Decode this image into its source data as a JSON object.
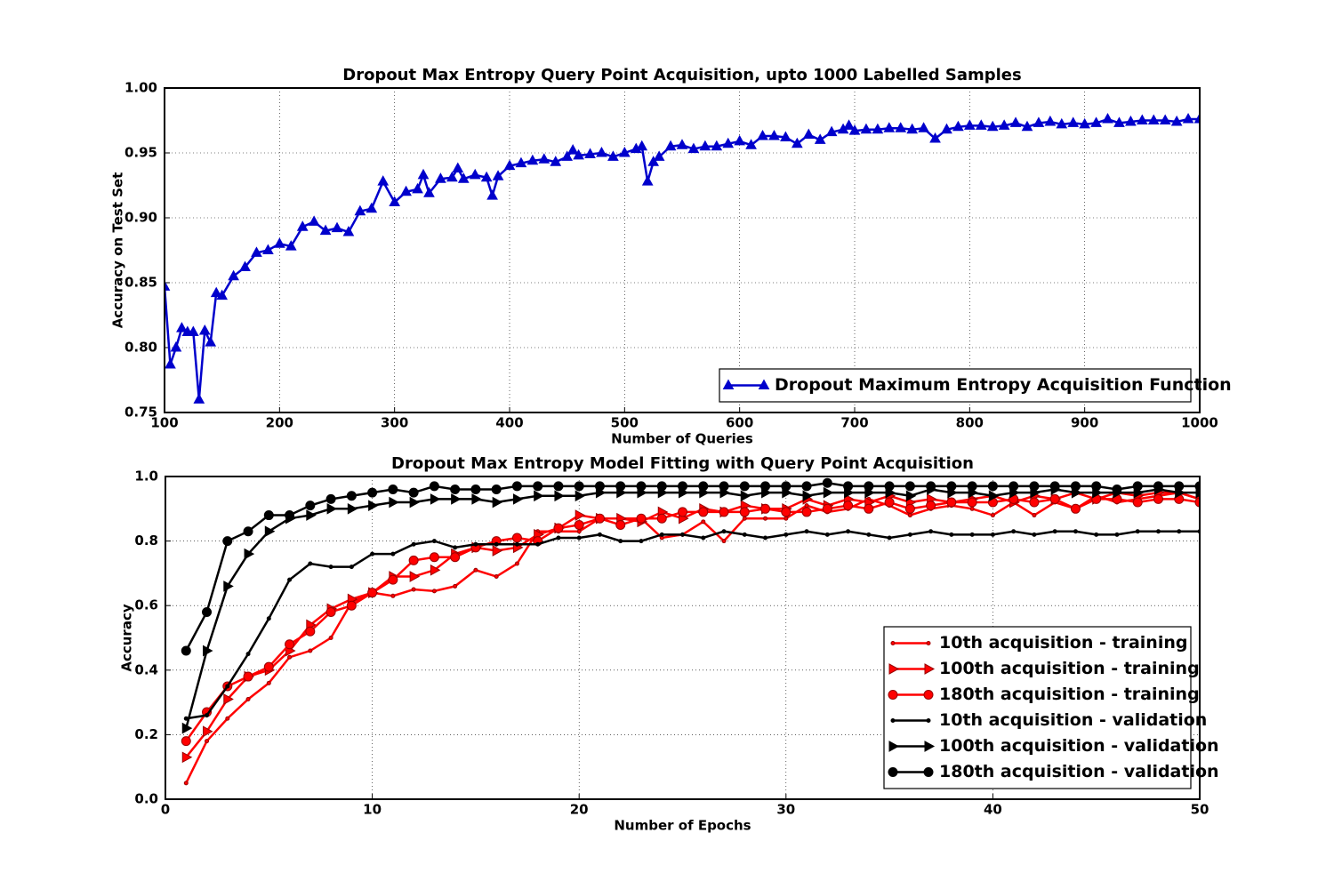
{
  "chart_data": [
    {
      "type": "line",
      "title": "Dropout Max Entropy Query Point Acquisition, upto 1000 Labelled Samples",
      "x_label": "Number of Queries",
      "y_label": "Accuracy on Test Set",
      "x": [
        100,
        105,
        110,
        115,
        120,
        125,
        130,
        135,
        140,
        145,
        150,
        160,
        170,
        180,
        190,
        200,
        210,
        220,
        230,
        240,
        250,
        260,
        270,
        280,
        290,
        300,
        310,
        320,
        325,
        330,
        340,
        350,
        355,
        360,
        370,
        380,
        385,
        390,
        400,
        410,
        420,
        430,
        440,
        450,
        455,
        460,
        470,
        480,
        490,
        500,
        510,
        515,
        520,
        525,
        530,
        540,
        550,
        560,
        570,
        580,
        590,
        600,
        610,
        620,
        630,
        640,
        650,
        660,
        670,
        680,
        690,
        695,
        700,
        710,
        720,
        730,
        740,
        750,
        760,
        770,
        780,
        790,
        800,
        810,
        820,
        830,
        840,
        850,
        860,
        870,
        880,
        890,
        900,
        910,
        920,
        930,
        940,
        950,
        960,
        970,
        980,
        990,
        1000
      ],
      "series": [
        {
          "name": "Dropout Maximum Entropy Acquisition Function",
          "color": "#0000cc",
          "marker": "triangle",
          "values": [
            0.847,
            0.787,
            0.8,
            0.815,
            0.812,
            0.812,
            0.76,
            0.813,
            0.804,
            0.842,
            0.84,
            0.855,
            0.862,
            0.873,
            0.875,
            0.88,
            0.878,
            0.893,
            0.897,
            0.89,
            0.892,
            0.889,
            0.905,
            0.907,
            0.928,
            0.912,
            0.92,
            0.922,
            0.933,
            0.919,
            0.93,
            0.931,
            0.938,
            0.93,
            0.933,
            0.931,
            0.917,
            0.932,
            0.94,
            0.942,
            0.944,
            0.945,
            0.943,
            0.947,
            0.952,
            0.948,
            0.949,
            0.95,
            0.947,
            0.95,
            0.953,
            0.955,
            0.928,
            0.943,
            0.947,
            0.955,
            0.956,
            0.953,
            0.955,
            0.955,
            0.957,
            0.959,
            0.956,
            0.963,
            0.963,
            0.962,
            0.957,
            0.964,
            0.96,
            0.966,
            0.968,
            0.971,
            0.967,
            0.968,
            0.968,
            0.969,
            0.969,
            0.968,
            0.969,
            0.961,
            0.968,
            0.97,
            0.971,
            0.971,
            0.97,
            0.971,
            0.973,
            0.97,
            0.973,
            0.974,
            0.972,
            0.973,
            0.972,
            0.973,
            0.976,
            0.973,
            0.974,
            0.975,
            0.975,
            0.975,
            0.974,
            0.976,
            0.976
          ]
        }
      ],
      "xlim": [
        100,
        1000
      ],
      "xticks": [
        100,
        200,
        300,
        400,
        500,
        600,
        700,
        800,
        900,
        1000
      ],
      "ylim": [
        0.75,
        1.0
      ],
      "yticks": [
        0.75,
        {
          "value": 0.8,
          "label": "0.80"
        },
        0.85,
        {
          "value": 0.9,
          "label": "0.90"
        },
        0.95,
        {
          "value": 1.0,
          "label": "1.00"
        }
      ],
      "grid": true,
      "legend": "lower right"
    },
    {
      "type": "line",
      "title": "Dropout Max Entropy Model Fitting with Query Point Acquisition",
      "x_label": "Number of Epochs",
      "y_label": "Accuracy",
      "x": [
        1,
        2,
        3,
        4,
        5,
        6,
        7,
        8,
        9,
        10,
        11,
        12,
        13,
        14,
        15,
        16,
        17,
        18,
        19,
        20,
        21,
        22,
        23,
        24,
        25,
        26,
        27,
        28,
        29,
        30,
        31,
        32,
        33,
        34,
        35,
        36,
        37,
        38,
        39,
        40,
        41,
        42,
        43,
        44,
        45,
        46,
        47,
        48,
        49,
        50
      ],
      "series": [
        {
          "name": "10th acquisition - training",
          "color": "#ff0000",
          "marker": "dot",
          "values": [
            0.05,
            0.18,
            0.25,
            0.31,
            0.36,
            0.44,
            0.46,
            0.5,
            0.61,
            0.64,
            0.63,
            0.65,
            0.645,
            0.66,
            0.71,
            0.69,
            0.73,
            0.83,
            0.83,
            0.83,
            0.87,
            0.87,
            0.87,
            0.81,
            0.82,
            0.86,
            0.8,
            0.87,
            0.87,
            0.87,
            0.91,
            0.89,
            0.9,
            0.93,
            0.91,
            0.88,
            0.9,
            0.91,
            0.9,
            0.88,
            0.92,
            0.88,
            0.92,
            0.9,
            0.94,
            0.92,
            0.93,
            0.94,
            0.95,
            0.93
          ]
        },
        {
          "name": "100th acquisition - training",
          "color": "#ff0000",
          "marker": "triangle-right",
          "values": [
            0.13,
            0.21,
            0.31,
            0.38,
            0.4,
            0.46,
            0.54,
            0.59,
            0.62,
            0.64,
            0.69,
            0.69,
            0.71,
            0.76,
            0.78,
            0.77,
            0.78,
            0.82,
            0.84,
            0.88,
            0.87,
            0.87,
            0.86,
            0.89,
            0.87,
            0.9,
            0.89,
            0.91,
            0.9,
            0.9,
            0.93,
            0.91,
            0.93,
            0.92,
            0.94,
            0.92,
            0.93,
            0.92,
            0.93,
            0.94,
            0.92,
            0.94,
            0.93,
            0.95,
            0.93,
            0.95,
            0.94,
            0.95,
            0.95,
            0.93
          ]
        },
        {
          "name": "180th acquisition - training",
          "color": "#ff0000",
          "marker": "circle",
          "values": [
            0.18,
            0.27,
            0.35,
            0.38,
            0.41,
            0.48,
            0.52,
            0.58,
            0.6,
            0.64,
            0.68,
            0.74,
            0.75,
            0.75,
            0.78,
            0.8,
            0.81,
            0.8,
            0.84,
            0.85,
            0.87,
            0.85,
            0.87,
            0.87,
            0.89,
            0.89,
            0.89,
            0.89,
            0.9,
            0.89,
            0.89,
            0.9,
            0.91,
            0.9,
            0.92,
            0.9,
            0.91,
            0.92,
            0.92,
            0.92,
            0.93,
            0.92,
            0.93,
            0.9,
            0.93,
            0.93,
            0.92,
            0.93,
            0.93,
            0.92
          ]
        },
        {
          "name": "10th acquisition - validation",
          "color": "#000000",
          "marker": "dot",
          "values": [
            0.25,
            0.26,
            0.35,
            0.45,
            0.56,
            0.68,
            0.73,
            0.72,
            0.72,
            0.76,
            0.76,
            0.79,
            0.8,
            0.78,
            0.79,
            0.79,
            0.79,
            0.79,
            0.81,
            0.81,
            0.82,
            0.8,
            0.8,
            0.82,
            0.82,
            0.81,
            0.83,
            0.82,
            0.81,
            0.82,
            0.83,
            0.82,
            0.83,
            0.82,
            0.81,
            0.82,
            0.83,
            0.82,
            0.82,
            0.82,
            0.83,
            0.82,
            0.83,
            0.83,
            0.82,
            0.82,
            0.83,
            0.83,
            0.83,
            0.83
          ]
        },
        {
          "name": "100th acquisition - validation",
          "color": "#000000",
          "marker": "triangle-right",
          "values": [
            0.22,
            0.46,
            0.66,
            0.76,
            0.83,
            0.87,
            0.88,
            0.9,
            0.9,
            0.91,
            0.92,
            0.92,
            0.93,
            0.93,
            0.93,
            0.92,
            0.93,
            0.94,
            0.94,
            0.94,
            0.95,
            0.95,
            0.95,
            0.95,
            0.95,
            0.95,
            0.95,
            0.94,
            0.95,
            0.95,
            0.94,
            0.95,
            0.95,
            0.95,
            0.95,
            0.94,
            0.96,
            0.95,
            0.95,
            0.94,
            0.95,
            0.95,
            0.96,
            0.95,
            0.95,
            0.95,
            0.95,
            0.96,
            0.95,
            0.95
          ]
        },
        {
          "name": "180th acquisition - validation",
          "color": "#000000",
          "marker": "circle",
          "values": [
            0.46,
            0.58,
            0.8,
            0.83,
            0.88,
            0.88,
            0.91,
            0.93,
            0.94,
            0.95,
            0.96,
            0.95,
            0.97,
            0.96,
            0.96,
            0.96,
            0.97,
            0.97,
            0.97,
            0.97,
            0.97,
            0.97,
            0.97,
            0.97,
            0.97,
            0.97,
            0.97,
            0.97,
            0.97,
            0.97,
            0.97,
            0.98,
            0.97,
            0.97,
            0.97,
            0.97,
            0.97,
            0.97,
            0.97,
            0.97,
            0.97,
            0.97,
            0.97,
            0.97,
            0.97,
            0.96,
            0.97,
            0.97,
            0.97,
            0.97
          ]
        }
      ],
      "xlim": [
        0,
        50
      ],
      "xticks": [
        0,
        10,
        20,
        30,
        40,
        50
      ],
      "ylim": [
        0,
        1
      ],
      "yticks": [
        {
          "value": 0,
          "label": "0.0"
        },
        0.2,
        0.4,
        0.6,
        0.8,
        {
          "value": 1,
          "label": "1.0"
        }
      ],
      "grid": true,
      "legend": "lower right"
    }
  ]
}
